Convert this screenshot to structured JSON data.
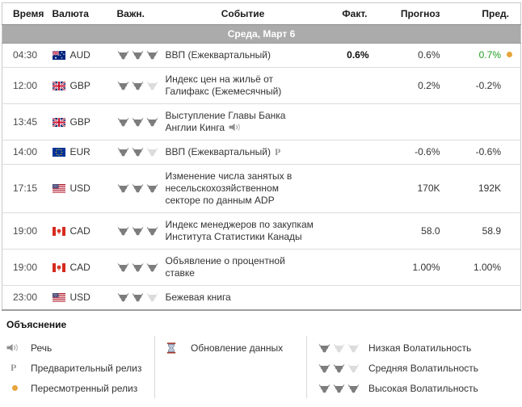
{
  "colors": {
    "accent_green": "#1f9e1f",
    "revised_dot_orange": "#e7a53c",
    "date_bar_gray": "#ababab",
    "bull_dark": "#7d7d7d",
    "bull_light": "#dcdcdc"
  },
  "table": {
    "headers": [
      "Время",
      "Валюта",
      "Важн.",
      "Событие",
      "Факт.",
      "Прогноз",
      "Пред."
    ],
    "date_header": "Среда, Март 6",
    "rows": [
      {
        "time": "04:30",
        "currency": "AUD",
        "flag": "AU",
        "importance": 3,
        "event": "ВВП (Ежеквартальный)",
        "event_icon": null,
        "actual": "0.6%",
        "forecast": "0.6%",
        "previous": "0.7%",
        "previous_green": true,
        "revised": true
      },
      {
        "time": "12:00",
        "currency": "GBP",
        "flag": "GB",
        "importance": 2,
        "event": "Индекс цен на жильё от Галифакс (Ежемесячный)",
        "event_icon": null,
        "actual": "",
        "forecast": "0.2%",
        "previous": "-0.2%",
        "previous_green": false,
        "revised": false
      },
      {
        "time": "13:45",
        "currency": "GBP",
        "flag": "GB",
        "importance": 3,
        "event": "Выступление Главы Банка Англии Кинга",
        "event_icon": "speech",
        "actual": "",
        "forecast": "",
        "previous": "",
        "previous_green": false,
        "revised": false
      },
      {
        "time": "14:00",
        "currency": "EUR",
        "flag": "EU",
        "importance": 2,
        "event": "ВВП (Ежеквартальный)",
        "event_icon": "preliminary",
        "actual": "",
        "forecast": "-0.6%",
        "previous": "-0.6%",
        "previous_green": false,
        "revised": false
      },
      {
        "time": "17:15",
        "currency": "USD",
        "flag": "US",
        "importance": 3,
        "event": "Изменение числа занятых в несельскохозяйственном секторе по данным ADP",
        "event_icon": null,
        "actual": "",
        "forecast": "170K",
        "previous": "192K",
        "previous_green": false,
        "revised": false
      },
      {
        "time": "19:00",
        "currency": "CAD",
        "flag": "CA",
        "importance": 3,
        "event": "Индекс менеджеров по закупкам Института Статистики Канады",
        "event_icon": null,
        "actual": "",
        "forecast": "58.0",
        "previous": "58.9",
        "previous_green": false,
        "revised": false
      },
      {
        "time": "19:00",
        "currency": "CAD",
        "flag": "CA",
        "importance": 3,
        "event": "Объявление о процентной ставке",
        "event_icon": null,
        "actual": "",
        "forecast": "1.00%",
        "previous": "1.00%",
        "previous_green": false,
        "revised": false
      },
      {
        "time": "23:00",
        "currency": "USD",
        "flag": "US",
        "importance": 2,
        "event": "Бежевая книга",
        "event_icon": null,
        "actual": "",
        "forecast": "",
        "previous": "",
        "previous_green": false,
        "revised": false
      }
    ]
  },
  "legend": {
    "title": "Объяснение",
    "col1": [
      {
        "icon": "speech",
        "label": "Речь"
      },
      {
        "icon": "preliminary",
        "label": "Предварительный релиз"
      },
      {
        "icon": "revised",
        "label": "Пересмотренный релиз"
      }
    ],
    "col2": [
      {
        "icon": "hourglass",
        "label": "Обновление данных"
      }
    ],
    "col3": [
      {
        "importance": 1,
        "label": "Низкая Волатильность"
      },
      {
        "importance": 2,
        "label": "Средняя Волатильность"
      },
      {
        "importance": 3,
        "label": "Высокая Волатильность"
      }
    ]
  }
}
